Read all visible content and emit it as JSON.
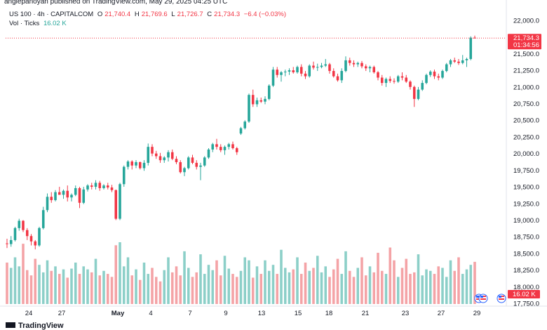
{
  "header": {
    "text": "anglepanoyan published on TradingView.com, May 29, 2025 04:25 UTC"
  },
  "legend": {
    "symbol": "US 100 · 4h · CAPITALCOM",
    "o_label": "O",
    "o": "21,740.4",
    "h_label": "H",
    "h": "21,769.6",
    "l_label": "L",
    "l": "21,726.7",
    "c_label": "C",
    "c": "21,734.3",
    "change": "−6.4 (−0.03%)",
    "vol_label": "Vol · Ticks",
    "vol_value": "16.02 K"
  },
  "price_tag": {
    "price": "21,734.3",
    "countdown": "01:34:56",
    "color": "#f23645"
  },
  "vol_tag": {
    "value": "16.02 K",
    "color": "#f23645"
  },
  "footer": {
    "brand": "TradingView"
  },
  "chart_data": {
    "type": "candlestick",
    "y_axis_ticks": [
      "22,000.0",
      "21,750.0",
      "21,500.0",
      "21,250.0",
      "21,000.0",
      "20,750.0",
      "20,500.0",
      "20,250.0",
      "20,000.0",
      "19,750.0",
      "19,500.0",
      "19,250.0",
      "19,000.0",
      "18,750.0",
      "18,500.0",
      "18,250.0",
      "18,000.0",
      "17,750.0"
    ],
    "ylim": [
      17750,
      22000
    ],
    "x_axis_ticks": [
      "24",
      "27",
      "May",
      "4",
      "7",
      "9",
      "13",
      "15",
      "18",
      "21",
      "23",
      "27",
      "29"
    ],
    "colors": {
      "up": "#26a69a",
      "down": "#f23645",
      "vol_up": "#8ccfc8",
      "vol_down": "#f4a3a6"
    },
    "candles": [
      [
        18650,
        18720,
        18580,
        18640
      ],
      [
        18640,
        18760,
        18600,
        18700
      ],
      [
        18700,
        18900,
        18680,
        18880
      ],
      [
        18880,
        19020,
        18840,
        18990
      ],
      [
        18990,
        19000,
        18820,
        18850
      ],
      [
        18850,
        18880,
        18700,
        18760
      ],
      [
        18760,
        18790,
        18620,
        18680
      ],
      [
        18680,
        18700,
        18560,
        18620
      ],
      [
        18620,
        18900,
        18600,
        18880
      ],
      [
        18880,
        19200,
        18860,
        19150
      ],
      [
        19150,
        19400,
        19120,
        19350
      ],
      [
        19350,
        19420,
        19260,
        19300
      ],
      [
        19300,
        19450,
        19280,
        19420
      ],
      [
        19420,
        19500,
        19380,
        19380
      ],
      [
        19380,
        19460,
        19320,
        19440
      ],
      [
        19440,
        19520,
        19280,
        19340
      ],
      [
        19340,
        19400,
        19280,
        19380
      ],
      [
        19380,
        19520,
        19360,
        19480
      ],
      [
        19480,
        19500,
        19180,
        19260
      ],
      [
        19260,
        19500,
        19240,
        19460
      ],
      [
        19460,
        19540,
        19430,
        19520
      ],
      [
        19520,
        19560,
        19460,
        19500
      ],
      [
        19500,
        19600,
        19460,
        19560
      ],
      [
        19560,
        19590,
        19440,
        19480
      ],
      [
        19480,
        19540,
        19460,
        19520
      ],
      [
        19520,
        19560,
        19460,
        19490
      ],
      [
        19490,
        19530,
        19420,
        19450
      ],
      [
        19450,
        19460,
        19000,
        19020
      ],
      [
        19020,
        19560,
        19000,
        19540
      ],
      [
        19540,
        19820,
        19500,
        19800
      ],
      [
        19800,
        19900,
        19760,
        19880
      ],
      [
        19880,
        19900,
        19760,
        19820
      ],
      [
        19820,
        19900,
        19780,
        19870
      ],
      [
        19870,
        19880,
        19760,
        19780
      ],
      [
        19780,
        19900,
        19740,
        19860
      ],
      [
        19860,
        20150,
        19820,
        20100
      ],
      [
        20100,
        20140,
        19960,
        20000
      ],
      [
        20000,
        20040,
        19920,
        19960
      ],
      [
        19960,
        20010,
        19860,
        19900
      ],
      [
        19900,
        19960,
        19860,
        19940
      ],
      [
        19940,
        20050,
        19880,
        20020
      ],
      [
        20020,
        20060,
        19900,
        19920
      ],
      [
        19920,
        19960,
        19840,
        19870
      ],
      [
        19870,
        19900,
        19700,
        19720
      ],
      [
        19720,
        19800,
        19660,
        19780
      ],
      [
        19780,
        19960,
        19760,
        19940
      ],
      [
        19940,
        19980,
        19840,
        19860
      ],
      [
        19860,
        19900,
        19760,
        19800
      ],
      [
        19800,
        19860,
        19600,
        19820
      ],
      [
        19820,
        19960,
        19800,
        19940
      ],
      [
        19940,
        20080,
        19920,
        20060
      ],
      [
        20060,
        20160,
        20020,
        20140
      ],
      [
        20140,
        20220,
        20060,
        20100
      ],
      [
        20100,
        20140,
        20020,
        20050
      ],
      [
        20050,
        20120,
        19980,
        20100
      ],
      [
        20100,
        20160,
        20060,
        20140
      ],
      [
        20140,
        20180,
        20060,
        20080
      ],
      [
        20080,
        20100,
        19980,
        20020
      ],
      [
        20300,
        20400,
        20280,
        20380
      ],
      [
        20380,
        20500,
        20360,
        20480
      ],
      [
        20480,
        20900,
        20460,
        20880
      ],
      [
        20880,
        20960,
        20700,
        20740
      ],
      [
        20740,
        20840,
        20700,
        20800
      ],
      [
        20800,
        20840,
        20760,
        20780
      ],
      [
        20780,
        20860,
        20740,
        20820
      ],
      [
        20820,
        21040,
        20800,
        21020
      ],
      [
        21020,
        21300,
        21000,
        21260
      ],
      [
        21260,
        21300,
        21140,
        21180
      ],
      [
        21180,
        21240,
        21080,
        21220
      ],
      [
        21220,
        21260,
        21160,
        21230
      ],
      [
        21230,
        21280,
        21180,
        21250
      ],
      [
        21250,
        21300,
        21200,
        21220
      ],
      [
        21220,
        21320,
        21200,
        21300
      ],
      [
        21300,
        21340,
        21160,
        21200
      ],
      [
        21200,
        21240,
        21120,
        21160
      ],
      [
        21160,
        21340,
        21140,
        21320
      ],
      [
        21320,
        21380,
        21260,
        21290
      ],
      [
        21290,
        21350,
        21240,
        21300
      ],
      [
        21300,
        21360,
        21280,
        21320
      ],
      [
        21320,
        21420,
        21300,
        21340
      ],
      [
        21340,
        21360,
        21200,
        21240
      ],
      [
        21240,
        21280,
        21140,
        21160
      ],
      [
        21160,
        21200,
        21080,
        21100
      ],
      [
        21100,
        21280,
        21060,
        21240
      ],
      [
        21240,
        21460,
        21220,
        21400
      ],
      [
        21400,
        21440,
        21320,
        21360
      ],
      [
        21360,
        21400,
        21300,
        21340
      ],
      [
        21340,
        21380,
        21300,
        21360
      ],
      [
        21360,
        21390,
        21280,
        21310
      ],
      [
        21310,
        21340,
        21240,
        21280
      ],
      [
        21280,
        21320,
        21220,
        21300
      ],
      [
        21300,
        21320,
        21200,
        21220
      ],
      [
        21220,
        21240,
        21100,
        21140
      ],
      [
        21140,
        21180,
        21020,
        21060
      ],
      [
        21060,
        21140,
        21000,
        21120
      ],
      [
        21120,
        21160,
        21060,
        21090
      ],
      [
        21090,
        21130,
        21050,
        21080
      ],
      [
        21080,
        21180,
        21060,
        21160
      ],
      [
        21160,
        21220,
        21100,
        21140
      ],
      [
        21140,
        21180,
        21060,
        21080
      ],
      [
        21080,
        21100,
        20960,
        21000
      ],
      [
        21000,
        21020,
        20700,
        20820
      ],
      [
        20820,
        21000,
        20800,
        20960
      ],
      [
        20960,
        21100,
        20940,
        21060
      ],
      [
        21060,
        21200,
        21040,
        21180
      ],
      [
        21180,
        21250,
        21150,
        21230
      ],
      [
        21230,
        21260,
        21120,
        21160
      ],
      [
        21160,
        21200,
        21100,
        21140
      ],
      [
        21140,
        21260,
        21120,
        21240
      ],
      [
        21240,
        21360,
        21220,
        21340
      ],
      [
        21340,
        21420,
        21300,
        21400
      ],
      [
        21400,
        21440,
        21360,
        21380
      ],
      [
        21380,
        21420,
        21330,
        21360
      ],
      [
        21360,
        21480,
        21340,
        21400
      ],
      [
        21400,
        21440,
        21300,
        21420
      ],
      [
        21420,
        21760,
        21400,
        21740
      ],
      [
        21740,
        21770,
        21727,
        21734
      ]
    ],
    "volume": [
      55,
      48,
      62,
      50,
      80,
      45,
      38,
      60,
      52,
      42,
      58,
      44,
      50,
      40,
      46,
      35,
      47,
      55,
      40,
      50,
      46,
      42,
      60,
      38,
      44,
      40,
      36,
      78,
      82,
      50,
      62,
      38,
      46,
      32,
      55,
      40,
      48,
      36,
      30,
      45,
      62,
      42,
      50,
      38,
      70,
      48,
      36,
      42,
      66,
      40,
      52,
      45,
      58,
      38,
      64,
      47,
      40,
      36,
      44,
      62,
      58,
      35,
      50,
      40,
      58,
      44,
      52,
      40,
      72,
      48,
      42,
      46,
      62,
      40,
      55,
      44,
      48,
      64,
      42,
      50,
      36,
      46,
      60,
      40,
      70,
      44,
      36,
      48,
      62,
      38,
      50,
      42,
      68,
      44,
      40,
      75,
      58,
      36,
      48,
      60,
      40,
      42,
      66,
      38,
      46,
      44,
      40,
      50,
      48,
      36,
      58,
      44,
      62,
      40,
      46,
      52,
      56
    ]
  }
}
